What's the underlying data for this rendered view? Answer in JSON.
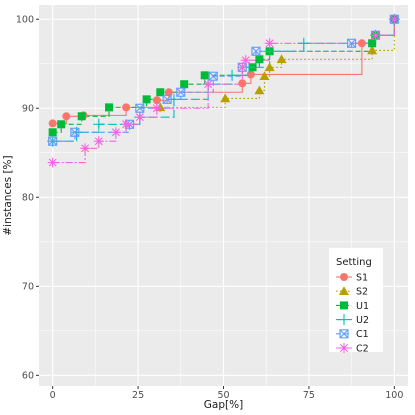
{
  "chart_data": {
    "type": "line",
    "xlabel": "Gap[%]",
    "ylabel": "#instances [%]",
    "xlim": [
      -4,
      104
    ],
    "ylim": [
      58.8,
      101.6
    ],
    "xticks": [
      0,
      25,
      50,
      75,
      100
    ],
    "yticks": [
      60,
      70,
      80,
      90,
      100
    ],
    "grid": true,
    "legend": {
      "title": "Setting",
      "position": "right-bottom inside"
    },
    "series": [
      {
        "name": "S1",
        "color": "#F8766D",
        "shape": "circle",
        "linestyle": "solid",
        "x": [
          0,
          4,
          9,
          21.5,
          30.5,
          34,
          55.5,
          58,
          90.5,
          94.5,
          100
        ],
        "y": [
          88.3,
          89.1,
          89.2,
          90.1,
          90.9,
          91.8,
          92.8,
          93.8,
          97.3,
          98.2,
          100
        ]
      },
      {
        "name": "S2",
        "color": "#B79F00",
        "shape": "triangle",
        "linestyle": "dotted",
        "x": [
          31.5,
          50.5,
          60.5,
          62,
          63.5,
          67,
          93.5,
          100
        ],
        "y": [
          90.1,
          91.1,
          92.0,
          93.6,
          94.6,
          95.5,
          96.5,
          100
        ]
      },
      {
        "name": "U1",
        "color": "#00BA38",
        "shape": "square",
        "linestyle": "dashed",
        "x": [
          0,
          2.5,
          8.5,
          16.5,
          27.5,
          31.5,
          38.5,
          44.5,
          58.5,
          60.5,
          63.5,
          93.5,
          94.5,
          100
        ],
        "y": [
          87.3,
          88.2,
          89.1,
          90.1,
          91.0,
          91.8,
          92.7,
          93.7,
          94.6,
          95.5,
          96.4,
          97.3,
          98.2,
          100
        ]
      },
      {
        "name": "U2",
        "color": "#00BFC4",
        "shape": "plus",
        "linestyle": "longdash",
        "x": [
          0,
          7,
          13.5,
          25.5,
          35.5,
          45.5,
          52.5,
          57.5,
          63.5,
          73.5,
          94.5,
          100
        ],
        "y": [
          86.3,
          87.3,
          88.2,
          89.0,
          91.0,
          92.7,
          93.7,
          94.6,
          96.4,
          97.3,
          98.2,
          100
        ]
      },
      {
        "name": "C1",
        "color": "#619CFF",
        "shape": "square-x",
        "linestyle": "dashed",
        "x": [
          0,
          6.5,
          22.5,
          25.5,
          33.5,
          37.5,
          47,
          55.5,
          59.5,
          87.5,
          94.5,
          100
        ],
        "y": [
          86.3,
          87.3,
          88.2,
          90.0,
          91.0,
          91.8,
          93.6,
          94.6,
          96.4,
          97.3,
          98.2,
          100
        ]
      },
      {
        "name": "C2",
        "color": "#F564E3",
        "shape": "star",
        "linestyle": "twodash",
        "x": [
          0,
          9.5,
          13.5,
          18.5,
          21.5,
          25.5,
          30.5,
          45.5,
          55.5,
          56.5,
          63.5,
          94.5,
          100
        ],
        "y": [
          83.9,
          85.5,
          86.3,
          87.3,
          88.2,
          89.0,
          90.0,
          92.7,
          94.6,
          95.4,
          97.3,
          98.2,
          100
        ]
      }
    ]
  }
}
